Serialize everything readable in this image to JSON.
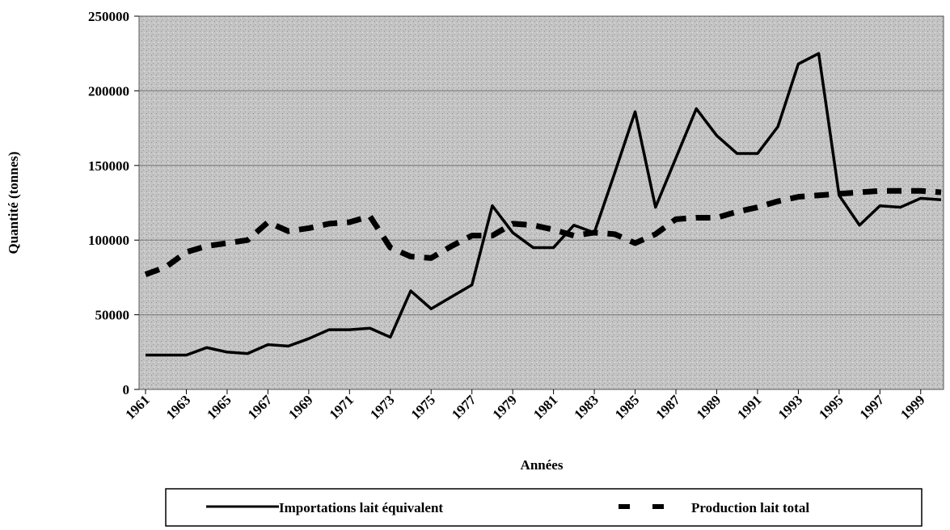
{
  "chart_data": {
    "type": "line",
    "x_label": "Années",
    "y_label": "Quantité (tonnes)",
    "x": [
      1961,
      1962,
      1963,
      1964,
      1965,
      1966,
      1967,
      1968,
      1969,
      1970,
      1971,
      1972,
      1973,
      1974,
      1975,
      1976,
      1977,
      1978,
      1979,
      1980,
      1981,
      1982,
      1983,
      1984,
      1985,
      1986,
      1987,
      1988,
      1989,
      1990,
      1991,
      1992,
      1993,
      1994,
      1995,
      1996,
      1997,
      1998,
      1999,
      2000
    ],
    "series": [
      {
        "name": "Importations lait équivalent",
        "color": "#000000",
        "dash": false,
        "values": [
          23000,
          23000,
          23000,
          28000,
          25000,
          24000,
          30000,
          29000,
          34000,
          40000,
          40000,
          41000,
          35000,
          66000,
          54000,
          62000,
          70000,
          123000,
          105000,
          95000,
          95000,
          110000,
          105000,
          145000,
          186000,
          122000,
          155000,
          188000,
          170000,
          158000,
          158000,
          176000,
          218000,
          225000,
          130000,
          110000,
          123000,
          122000,
          128000,
          127000
        ]
      },
      {
        "name": "Production lait total",
        "color": "#000000",
        "dash": true,
        "values": [
          77000,
          82000,
          92000,
          96000,
          98000,
          100000,
          112000,
          106000,
          108000,
          111000,
          112000,
          116000,
          95000,
          89000,
          88000,
          96000,
          103000,
          103000,
          111000,
          110000,
          107000,
          103000,
          105000,
          104000,
          98000,
          104000,
          114000,
          115000,
          115000,
          119000,
          122000,
          126000,
          129000,
          130000,
          131000,
          132000,
          133000,
          133000,
          133000,
          132000
        ]
      }
    ],
    "xlim": [
      1961,
      2000
    ],
    "xticks": [
      1961,
      1963,
      1965,
      1967,
      1969,
      1971,
      1973,
      1975,
      1977,
      1979,
      1981,
      1983,
      1985,
      1987,
      1989,
      1991,
      1993,
      1995,
      1997,
      1999
    ],
    "ylim": [
      0,
      250000
    ],
    "yticks": [
      0,
      50000,
      100000,
      150000,
      200000,
      250000
    ],
    "grid": true
  }
}
